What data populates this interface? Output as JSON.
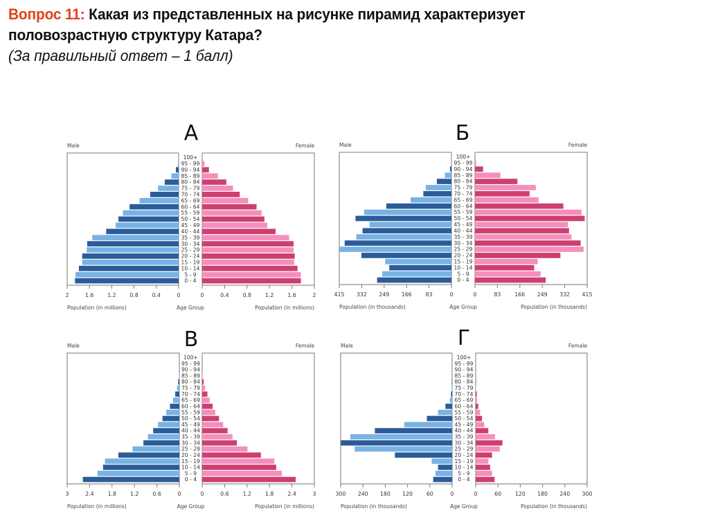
{
  "question": {
    "prefix": "Вопрос  11:",
    "text_line1": " Какая из представленных на рисунке пирамид характеризует",
    "text_line2": "половозрастную структуру Катара?",
    "score_note": "(За правильный ответ – 1 балл)"
  },
  "colors": {
    "male_dark": "#2b5c99",
    "male_light": "#78b3e4",
    "female_dark": "#cd3f6f",
    "female_light": "#f48fbd",
    "frame": "#777777",
    "question_prefix": "#e2421a"
  },
  "chart_data": [
    {
      "type": "bar",
      "subtype": "population-pyramid",
      "title": "А",
      "male_label": "Male",
      "female_label": "Female",
      "center_label": "Age Group",
      "xlabel_left": "Population (in millions)",
      "xlabel_right": "Population (in millions)",
      "xlim": [
        0,
        2
      ],
      "ticks": [
        "0",
        "0.4",
        "0.8",
        "1.2",
        "1.6",
        "2"
      ],
      "tick_values": [
        0,
        0.4,
        0.8,
        1.2,
        1.6,
        2
      ],
      "categories": [
        "0 - 4",
        "5 - 9",
        "10 - 14",
        "15 - 19",
        "20 - 24",
        "25 - 29",
        "30 - 34",
        "35 - 39",
        "40 - 44",
        "45 - 49",
        "50 - 54",
        "55 - 59",
        "60 - 64",
        "65 - 69",
        "70 - 74",
        "75 - 79",
        "80 - 84",
        "85 - 89",
        "90 - 94",
        "95 - 99",
        "100+"
      ],
      "series": [
        {
          "name": "Male",
          "values": [
            1.86,
            1.85,
            1.79,
            1.73,
            1.73,
            1.65,
            1.64,
            1.55,
            1.3,
            1.13,
            1.08,
            1.0,
            0.88,
            0.7,
            0.51,
            0.37,
            0.25,
            0.13,
            0.05,
            0.01,
            0
          ]
        },
        {
          "name": "Female",
          "values": [
            1.76,
            1.76,
            1.7,
            1.64,
            1.65,
            1.63,
            1.63,
            1.55,
            1.31,
            1.16,
            1.11,
            1.06,
            0.97,
            0.82,
            0.67,
            0.55,
            0.43,
            0.28,
            0.12,
            0.04,
            0
          ]
        }
      ]
    },
    {
      "type": "bar",
      "subtype": "population-pyramid",
      "title": "Б",
      "male_label": "Male",
      "female_label": "Female",
      "center_label": "Age Group",
      "xlabel_left": "Population (in thousands)",
      "xlabel_right": "Population (in thousands)",
      "xlim": [
        0,
        415
      ],
      "ticks": [
        "0",
        "83",
        "166",
        "249",
        "332",
        "415"
      ],
      "tick_values": [
        0,
        83,
        166,
        249,
        332,
        415
      ],
      "categories": [
        "0 - 4",
        "5 - 9",
        "10 - 14",
        "15 - 19",
        "20 - 24",
        "25 - 29",
        "30 - 34",
        "35 - 39",
        "40 - 44",
        "45 - 49",
        "50 - 54",
        "55 - 59",
        "60 - 64",
        "65 - 69",
        "70 - 74",
        "75 - 79",
        "80 - 84",
        "85 - 89",
        "90 - 94",
        "95 - 99",
        "100+"
      ],
      "series": [
        {
          "name": "Male",
          "values": [
            275,
            256,
            230,
            245,
            333,
            415,
            395,
            352,
            329,
            303,
            355,
            323,
            241,
            151,
            104,
            95,
            54,
            24,
            5,
            1,
            0
          ]
        },
        {
          "name": "Female",
          "values": [
            262,
            243,
            219,
            232,
            316,
            402,
            391,
            357,
            348,
            344,
            406,
            394,
            327,
            235,
            202,
            225,
            157,
            94,
            30,
            4,
            0
          ]
        }
      ]
    },
    {
      "type": "bar",
      "subtype": "population-pyramid",
      "title": "В",
      "male_label": "Male",
      "female_label": "Female",
      "center_label": "Age Group",
      "xlabel_left": "Population (in millions)",
      "xlabel_right": "Population (in millions)",
      "xlim": [
        0,
        3
      ],
      "ticks": [
        "0",
        "0.6",
        "1.2",
        "1.8",
        "2.4",
        "3"
      ],
      "tick_values": [
        0,
        0.6,
        1.2,
        1.8,
        2.4,
        3
      ],
      "categories": [
        "0 - 4",
        "5 - 9",
        "10 - 14",
        "15 - 19",
        "20 - 24",
        "25 - 29",
        "30 - 34",
        "35 - 39",
        "40 - 44",
        "45 - 49",
        "50 - 54",
        "55 - 59",
        "60 - 64",
        "65 - 69",
        "70 - 74",
        "75 - 79",
        "80 - 84",
        "85 - 89",
        "90 - 94",
        "95 - 99",
        "100+"
      ],
      "series": [
        {
          "name": "Male",
          "values": [
            2.58,
            2.19,
            2.04,
            1.99,
            1.63,
            1.25,
            0.96,
            0.84,
            0.7,
            0.57,
            0.45,
            0.35,
            0.25,
            0.17,
            0.11,
            0.06,
            0.03,
            0.01,
            0,
            0,
            0
          ]
        },
        {
          "name": "Female",
          "values": [
            2.5,
            2.13,
            1.98,
            1.93,
            1.57,
            1.21,
            0.93,
            0.81,
            0.68,
            0.56,
            0.45,
            0.35,
            0.28,
            0.2,
            0.14,
            0.08,
            0.04,
            0.01,
            0,
            0,
            0
          ]
        }
      ]
    },
    {
      "type": "bar",
      "subtype": "population-pyramid",
      "title": "Г",
      "male_label": "Male",
      "female_label": "Female",
      "center_label": "Age Group",
      "xlabel_left": "Population (in thousands)",
      "xlabel_right": "Population (in thousands)",
      "xlim": [
        0,
        300
      ],
      "ticks": [
        "0",
        "60",
        "120",
        "180",
        "240",
        "300"
      ],
      "tick_values": [
        0,
        60,
        120,
        180,
        240,
        300
      ],
      "categories": [
        "0 - 4",
        "5 - 9",
        "10 - 14",
        "15 - 19",
        "20 - 24",
        "25 - 29",
        "30 - 34",
        "35 - 39",
        "40 - 44",
        "45 - 49",
        "50 - 54",
        "55 - 59",
        "60 - 64",
        "65 - 69",
        "70 - 74",
        "75 - 79",
        "80 - 84",
        "85 - 89",
        "90 - 94",
        "95 - 99",
        "100+"
      ],
      "series": [
        {
          "name": "Male",
          "values": [
            51,
            45,
            38,
            55,
            154,
            262,
            299,
            274,
            208,
            129,
            68,
            38,
            18,
            6,
            3,
            1,
            1,
            0,
            0,
            0,
            0
          ]
        },
        {
          "name": "Female",
          "values": [
            51,
            44,
            39,
            34,
            44,
            65,
            72,
            52,
            34,
            23,
            17,
            12,
            7,
            4,
            3,
            1,
            1,
            0,
            0,
            0,
            0
          ]
        }
      ]
    }
  ]
}
